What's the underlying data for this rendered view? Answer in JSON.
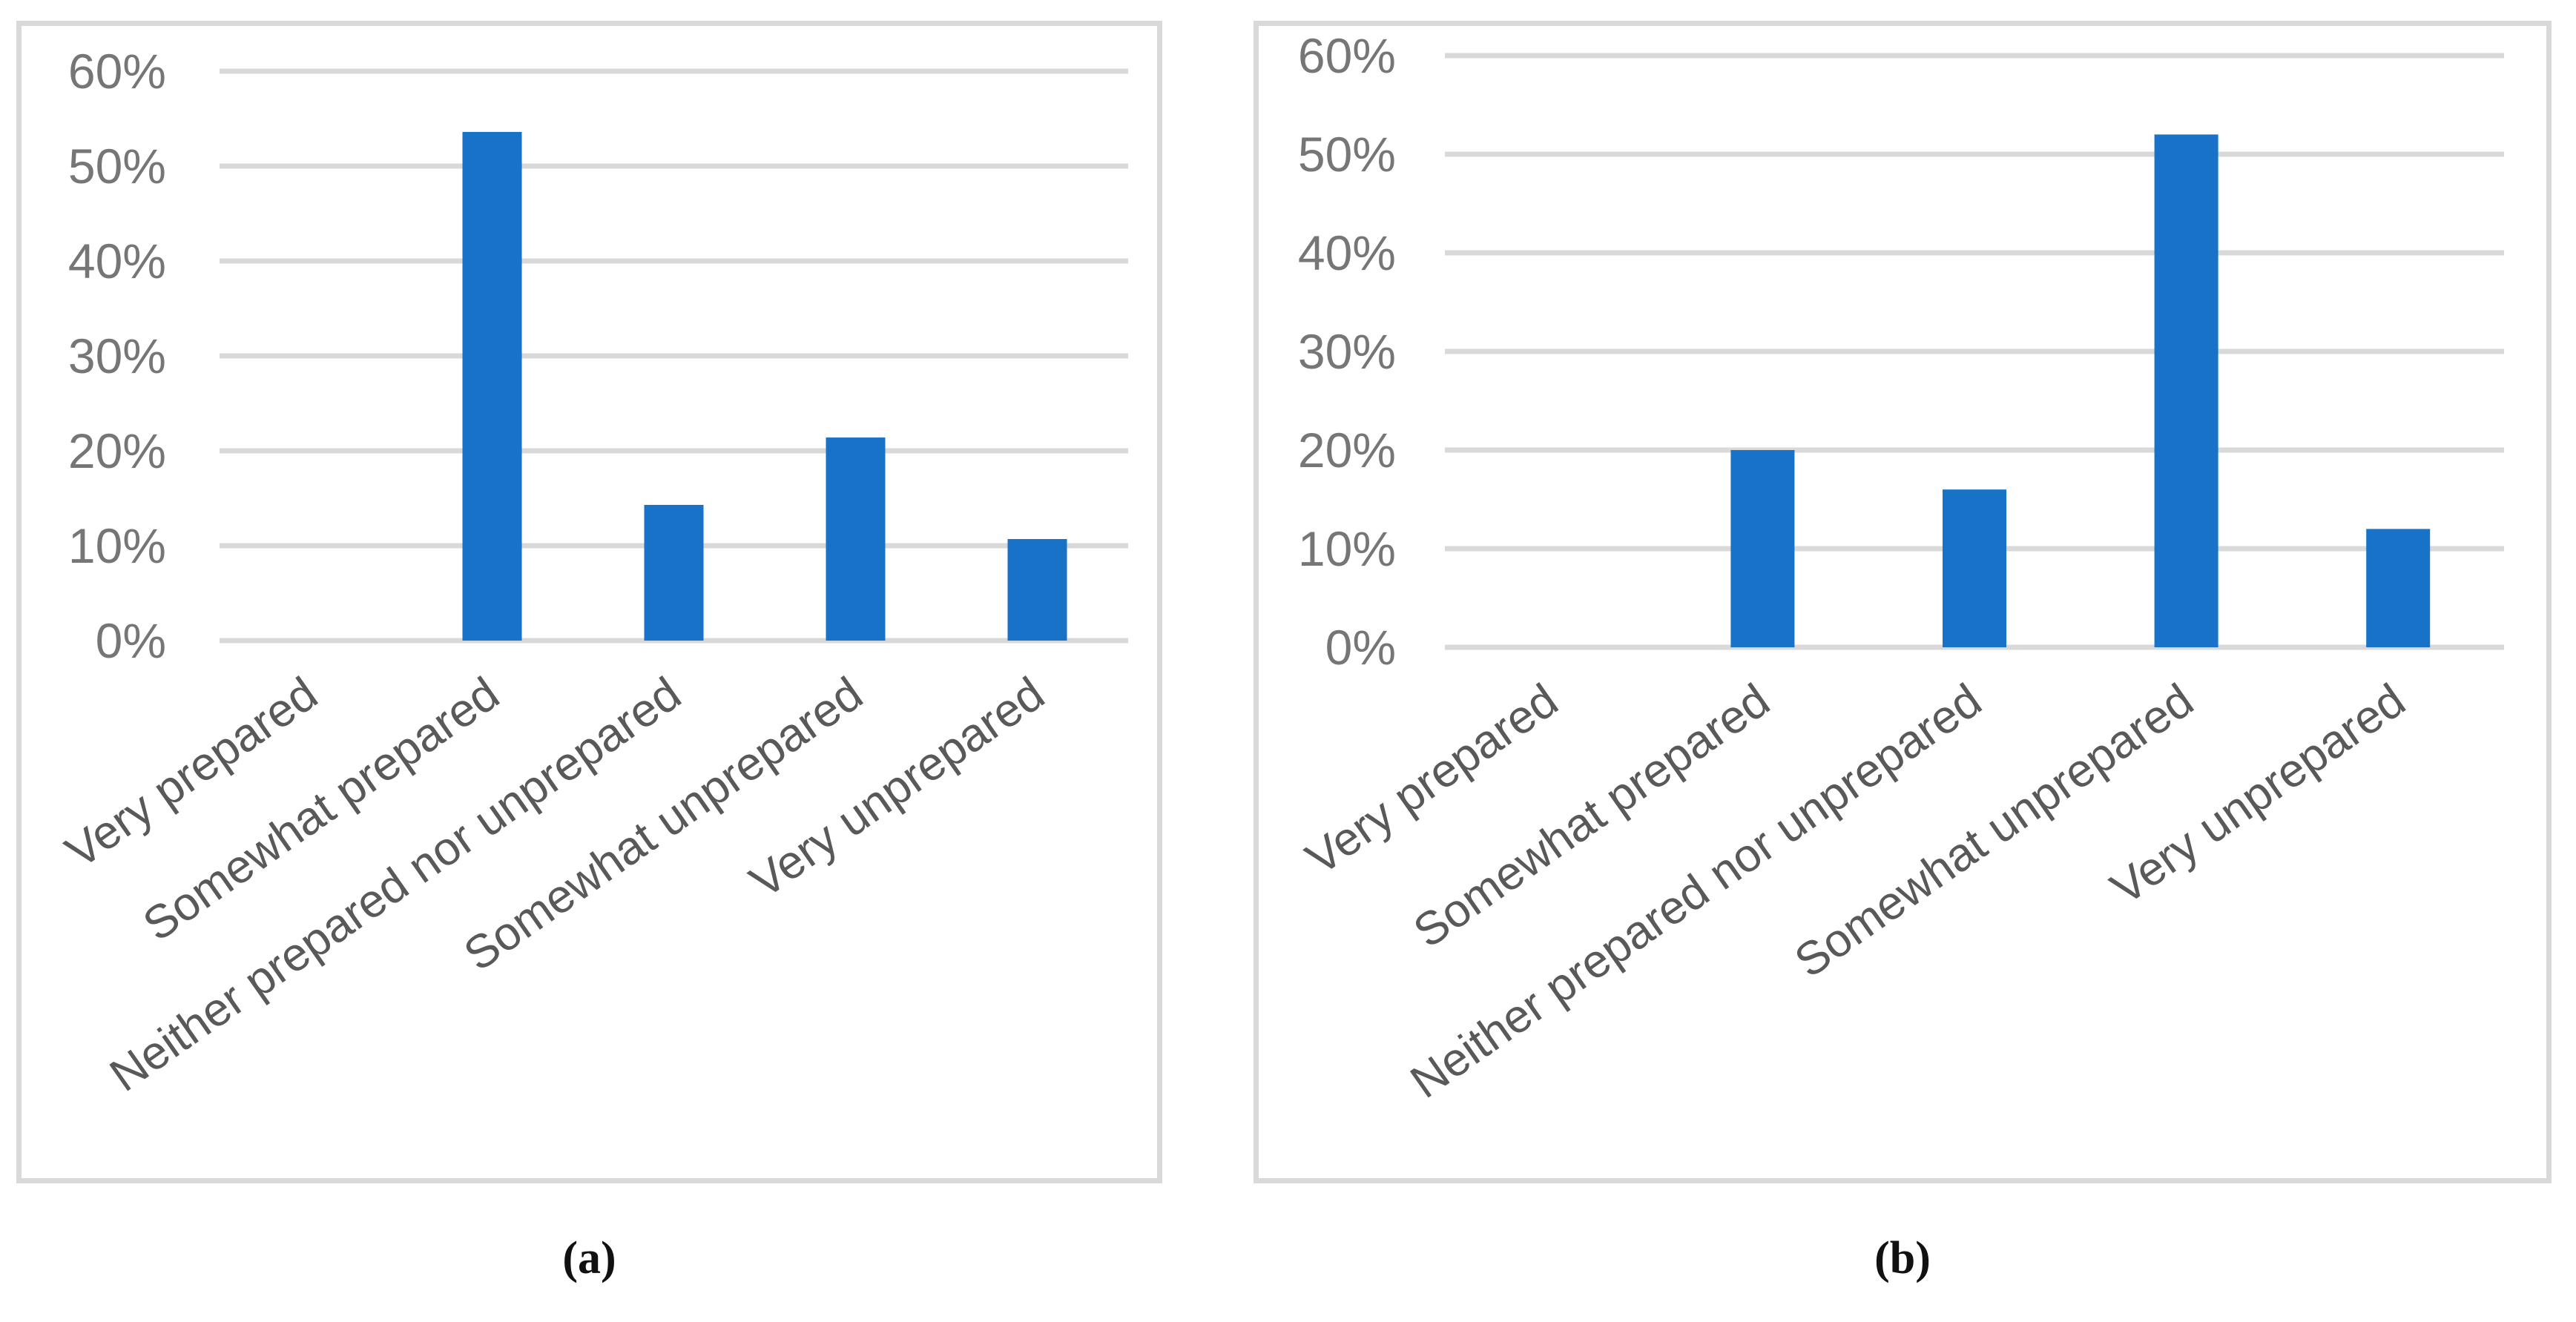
{
  "figure": {
    "caption_a": "(a)",
    "caption_b": "(b)"
  },
  "colors": {
    "bar": "#1772C8",
    "gridline": "#D9D9D9",
    "panel_border": "#D9D9D9",
    "y_tick_label": "#767676",
    "category_label": "#595959",
    "caption": "#111111",
    "background": "#FFFFFF"
  },
  "chart_data": [
    {
      "id": "a",
      "type": "bar",
      "title": "",
      "xlabel": "",
      "ylabel": "",
      "categories": [
        "Very prepared",
        "Somewhat prepared",
        "Neither prepared nor unprepared",
        "Somewhat unprepared",
        "Very unprepared"
      ],
      "values": [
        0,
        53.6,
        14.3,
        21.4,
        10.7
      ],
      "value_unit": "%",
      "ylim": [
        0,
        60
      ],
      "y_tick_values": [
        0,
        10,
        20,
        30,
        40,
        50,
        60
      ],
      "y_tick_labels": [
        "0%",
        "10%",
        "20%",
        "30%",
        "40%",
        "50%",
        "60%"
      ],
      "grid": true,
      "legend": "none",
      "x_label_rotation_deg": -35
    },
    {
      "id": "b",
      "type": "bar",
      "title": "",
      "xlabel": "",
      "ylabel": "",
      "categories": [
        "Very prepared",
        "Somewhat prepared",
        "Neither prepared nor unprepared",
        "Somewhat unprepared",
        "Very unprepared"
      ],
      "values": [
        0,
        20,
        16,
        52,
        12
      ],
      "value_unit": "%",
      "ylim": [
        0,
        60
      ],
      "y_tick_values": [
        0,
        10,
        20,
        30,
        40,
        50,
        60
      ],
      "y_tick_labels": [
        "0%",
        "10%",
        "20%",
        "30%",
        "40%",
        "50%",
        "60%"
      ],
      "grid": true,
      "legend": "none",
      "x_label_rotation_deg": -35
    }
  ]
}
